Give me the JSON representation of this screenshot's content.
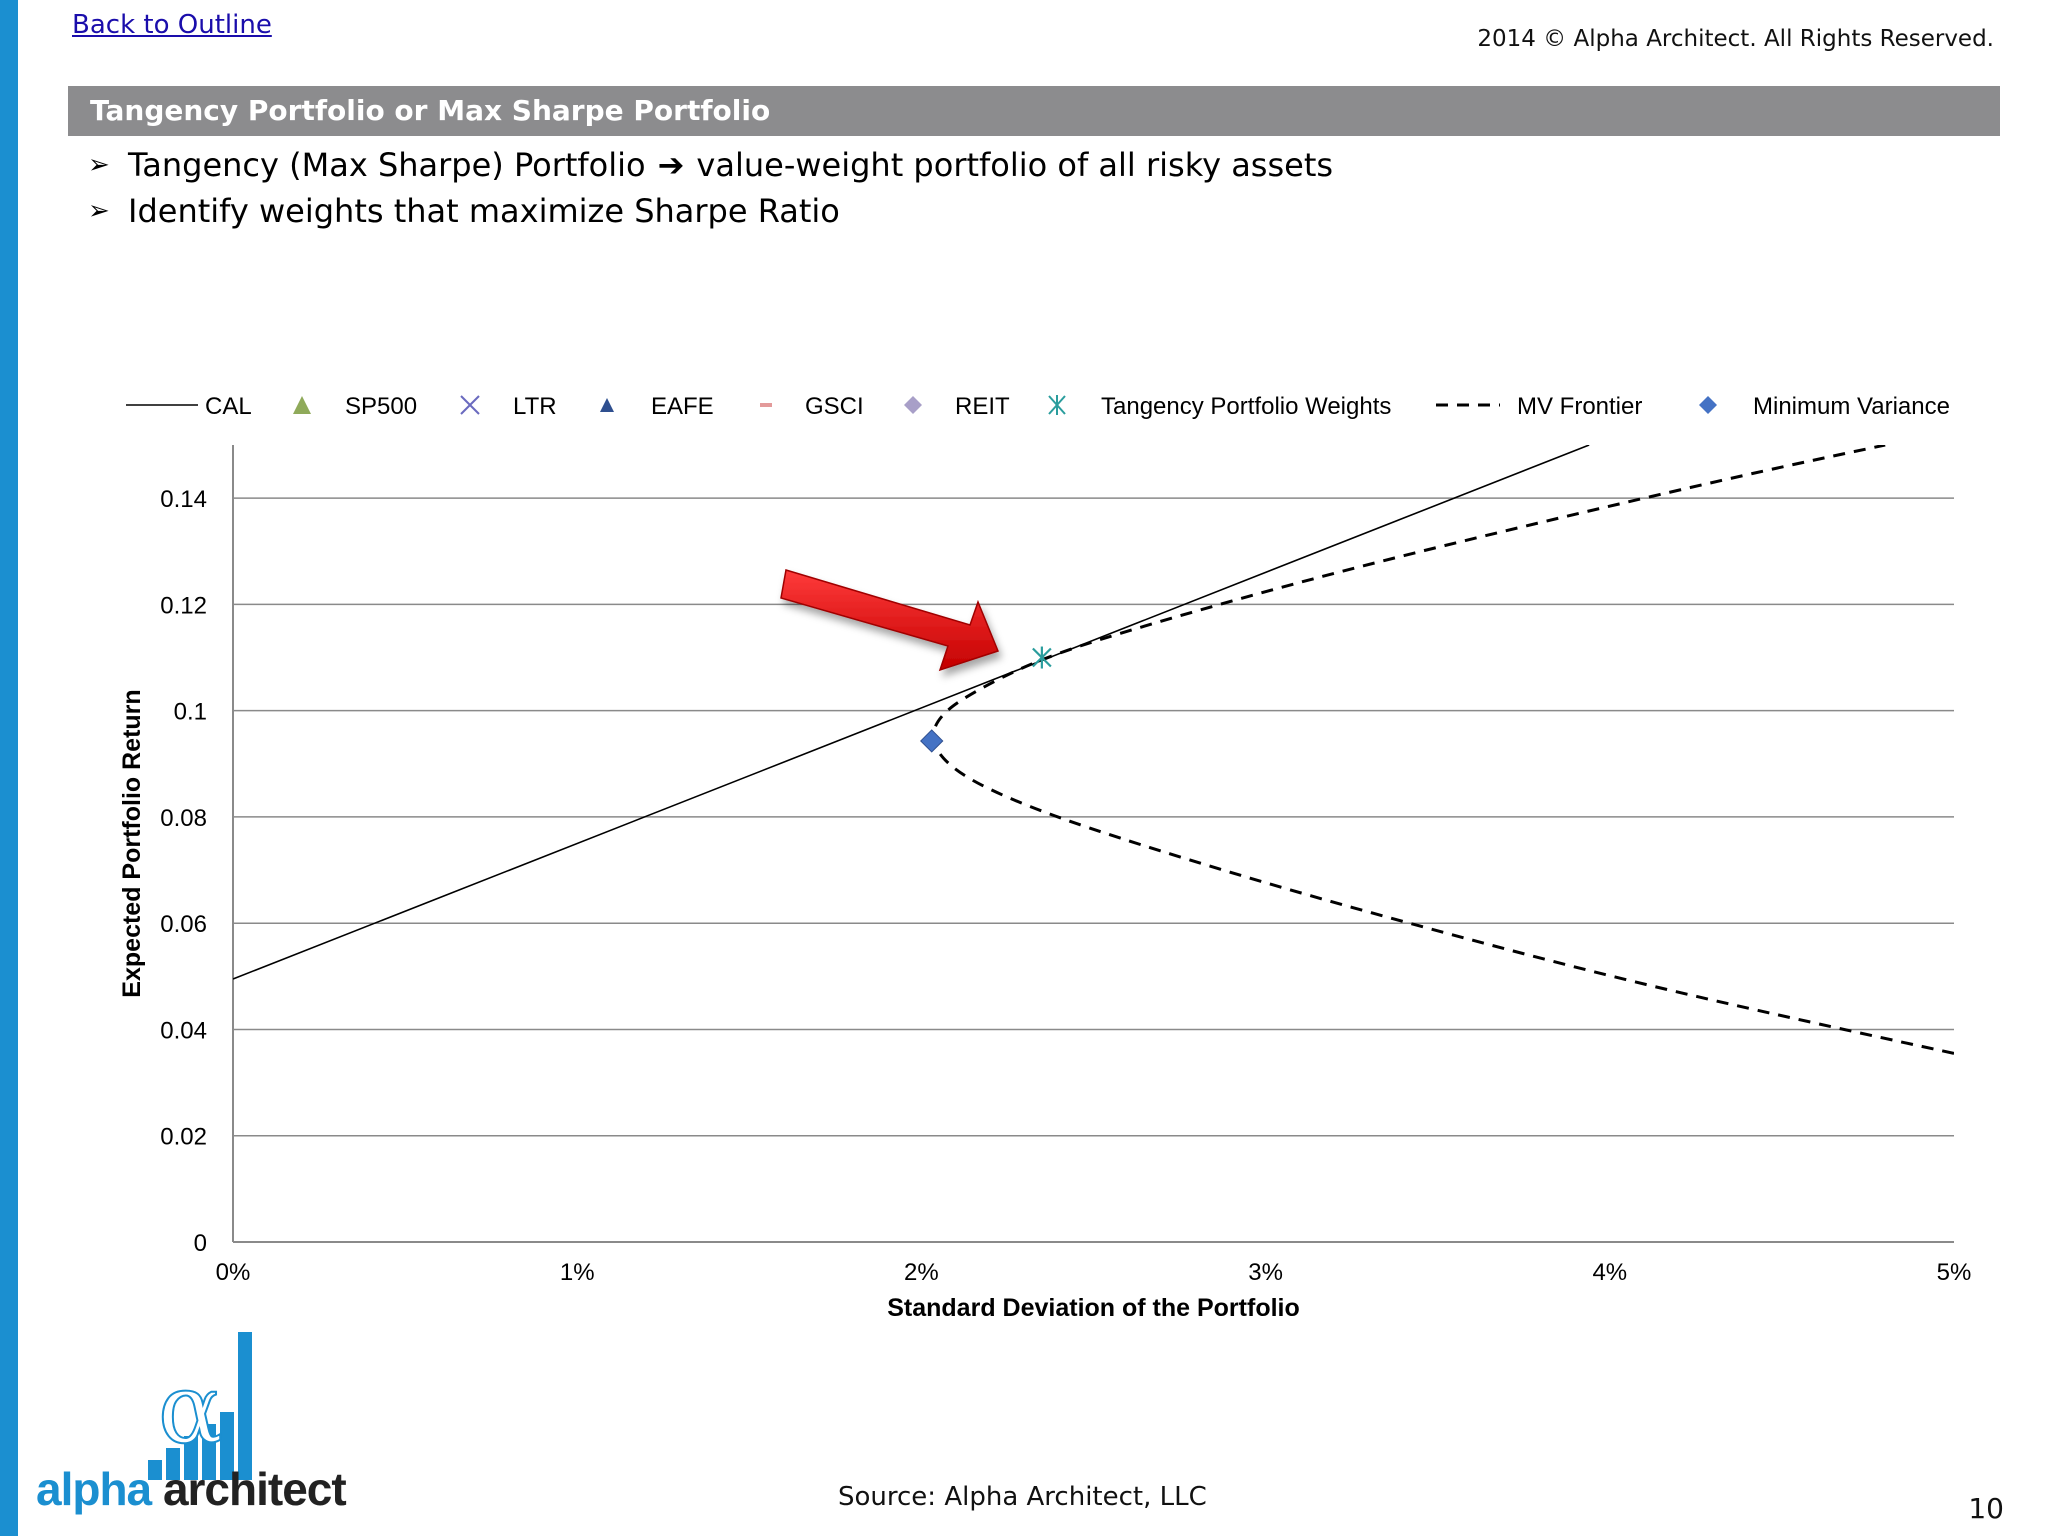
{
  "header": {
    "back_link": "Back to Outline",
    "copyright": "2014 © Alpha Architect. All Rights Reserved.",
    "title": "Tangency Portfolio or Max Sharpe Portfolio"
  },
  "bullets": [
    {
      "before": "Tangency (Max Sharpe) Portfolio",
      "arrow": "➔",
      "after": "value-weight portfolio of all risky assets"
    },
    {
      "before": "Identify weights that maximize Sharpe Ratio",
      "arrow": "",
      "after": ""
    }
  ],
  "chart_data": {
    "type": "scatter",
    "title": "",
    "xlabel": "Standard Deviation of the Portfolio",
    "ylabel": "Expected Portfolio Return",
    "xlim": [
      0,
      0.05
    ],
    "ylim": [
      0,
      0.15
    ],
    "x_ticks": [
      "0%",
      "1%",
      "2%",
      "3%",
      "4%",
      "5%"
    ],
    "y_ticks": [
      "0",
      "0.02",
      "0.04",
      "0.06",
      "0.08",
      "0.1",
      "0.12",
      "0.14"
    ],
    "grid": "horizontal",
    "legend_position": "top",
    "legend": [
      "CAL",
      "SP500",
      "LTR",
      "EAFE",
      "GSCI",
      "REIT",
      "Tangency Portfolio Weights",
      "MV Frontier",
      "Minimum Variance"
    ],
    "series": [
      {
        "name": "CAL",
        "style": "solid-line",
        "color": "#000000",
        "x": [
          0,
          0.0394
        ],
        "y": [
          0.0495,
          0.15
        ]
      },
      {
        "name": "MV Frontier",
        "style": "dashed-line",
        "color": "#000000",
        "x": [
          0.05,
          0.045,
          0.04,
          0.035,
          0.03,
          0.025,
          0.0225,
          0.021,
          0.0203,
          0.0204,
          0.0212,
          0.0235,
          0.027,
          0.032,
          0.038,
          0.044,
          0.048
        ],
        "y": [
          0.0355,
          0.0425,
          0.05,
          0.0585,
          0.0675,
          0.0775,
          0.0835,
          0.0885,
          0.0935,
          0.098,
          0.1025,
          0.11,
          0.117,
          0.126,
          0.1355,
          0.1445,
          0.15
        ]
      },
      {
        "name": "Tangency Portfolio Weights",
        "style": "asterisk-marker",
        "color": "#2a9d9d",
        "x": [
          0.0235
        ],
        "y": [
          0.11
        ]
      },
      {
        "name": "Minimum Variance",
        "style": "diamond-marker",
        "color": "#4472c4",
        "x": [
          0.0203
        ],
        "y": [
          0.0943
        ]
      }
    ],
    "legend_colors": {
      "SP500": "#8faa5a",
      "LTR": "#6a6abf",
      "EAFE": "#2f4f8f",
      "GSCI": "#e39a9a",
      "REIT": "#a89fc8",
      "Tangency Portfolio Weights": "#2a9d9d",
      "Minimum Variance": "#4472c4"
    },
    "annotation": "red arrow pointing at tangency portfolio"
  },
  "footer": {
    "logo_alpha": "alpha",
    "logo_architect": "architect",
    "source": "Source: Alpha Architect, LLC",
    "page": "10"
  }
}
